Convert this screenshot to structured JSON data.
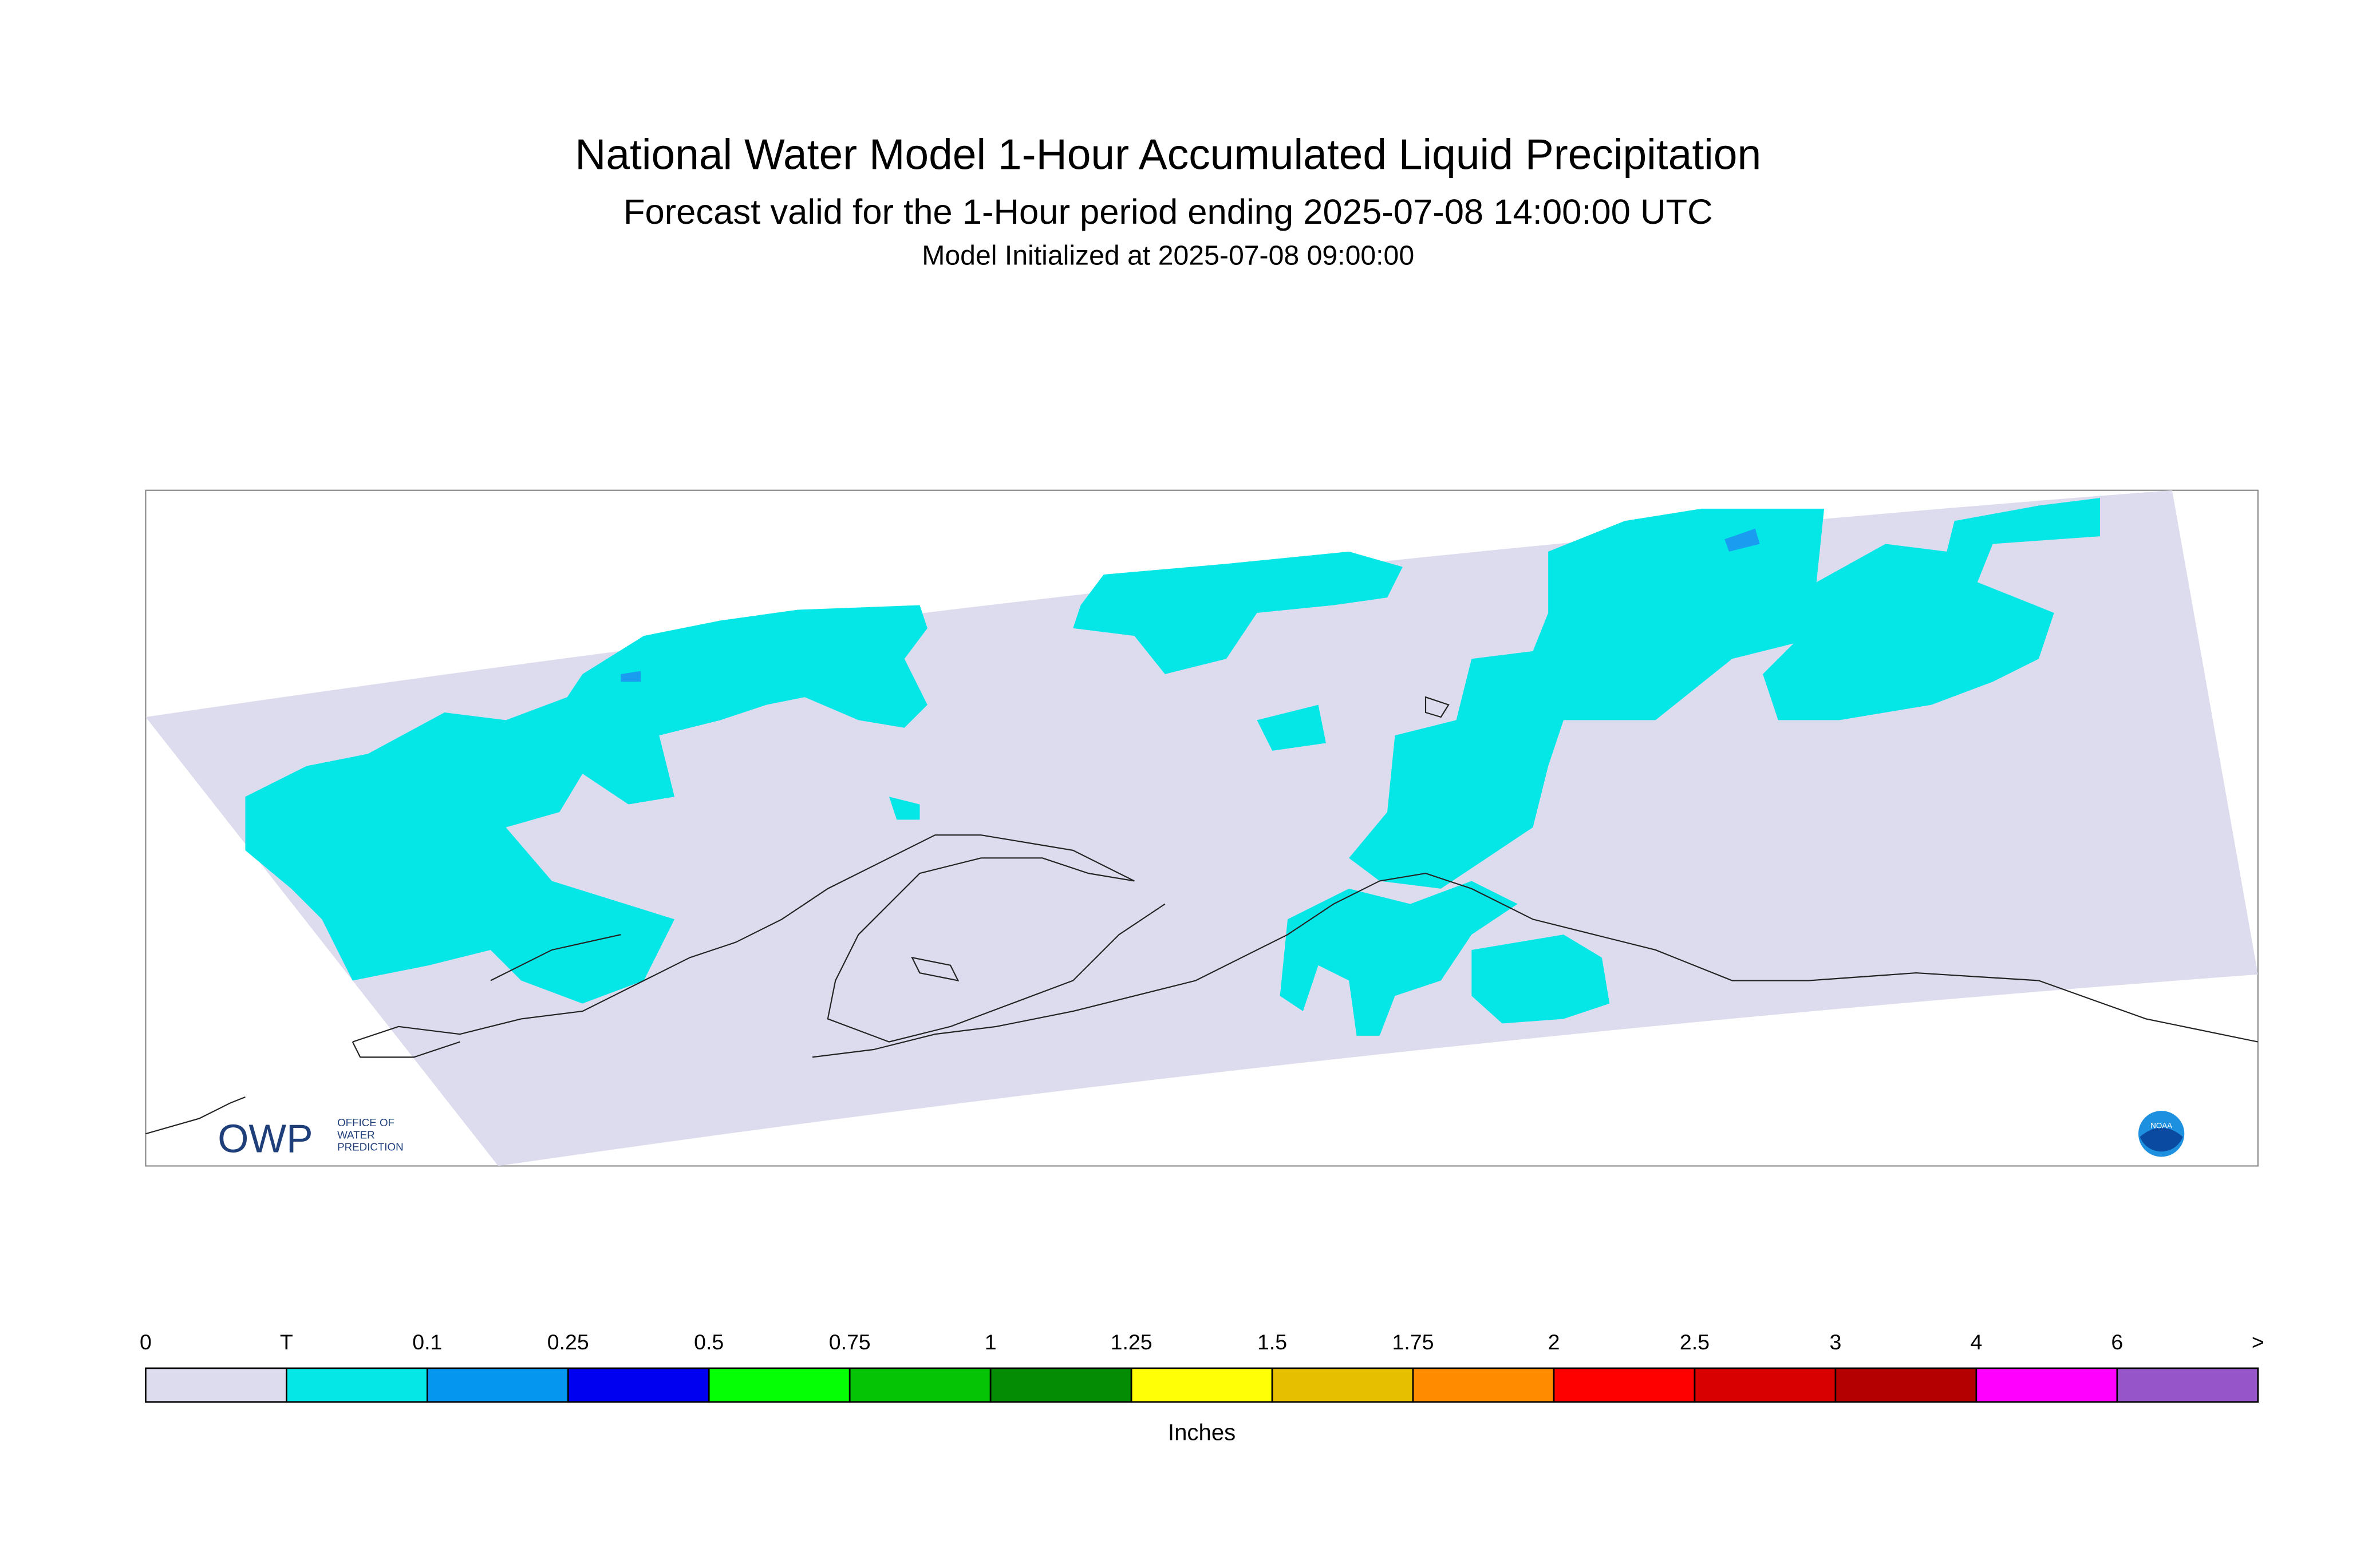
{
  "header": {
    "title": "National Water Model 1-Hour Accumulated Liquid Precipitation",
    "subtitle": "Forecast valid for the 1-Hour period ending 2025-07-08 14:00:00 UTC",
    "initialized": "Model Initialized at 2025-07-08 09:00:00"
  },
  "legend": {
    "labels": [
      "0",
      "T",
      "0.1",
      "0.25",
      "0.5",
      "0.75",
      "1",
      "1.25",
      "1.5",
      "1.75",
      "2",
      "2.5",
      "3",
      "4",
      "6",
      ">"
    ],
    "colors": [
      "#dcdcee",
      "#05e6e6",
      "#0596f0",
      "#0000f0",
      "#05ff05",
      "#05c405",
      "#058c05",
      "#ffff05",
      "#e6bf00",
      "#ff8c00",
      "#ff0000",
      "#d80000",
      "#b40000",
      "#ff00ff",
      "#9655c8"
    ],
    "units": "Inches"
  },
  "logos": {
    "owp": "OWP",
    "owp_lines": [
      "OFFICE OF",
      "WATER",
      "PREDICTION"
    ],
    "noaa": "NOAA"
  }
}
